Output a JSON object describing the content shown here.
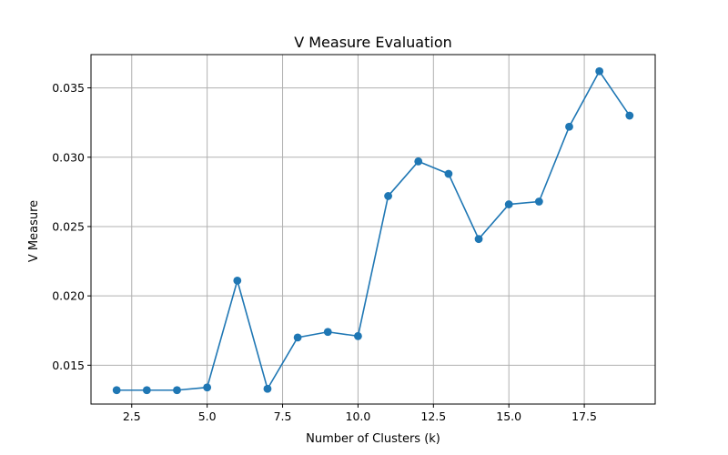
{
  "chart_data": {
    "type": "line",
    "title": "V Measure Evaluation",
    "xlabel": "Number of Clusters (k)",
    "ylabel": "V Measure",
    "xlim": [
      1.15,
      19.85
    ],
    "ylim": [
      0.0122,
      0.0374
    ],
    "xticks": [
      2.5,
      5.0,
      7.5,
      10.0,
      12.5,
      15.0,
      17.5
    ],
    "xtick_labels": [
      "2.5",
      "5.0",
      "7.5",
      "10.0",
      "12.5",
      "15.0",
      "17.5"
    ],
    "yticks": [
      0.015,
      0.02,
      0.025,
      0.03,
      0.035
    ],
    "ytick_labels": [
      "0.015",
      "0.020",
      "0.025",
      "0.030",
      "0.035"
    ],
    "grid": true,
    "marker": "circle",
    "color": "#1f77b4",
    "series": [
      {
        "x": [
          2,
          3,
          4,
          5,
          6,
          7,
          8,
          9,
          10,
          11,
          12,
          13,
          14,
          15,
          16,
          17,
          18,
          19
        ],
        "values": [
          0.0132,
          0.0132,
          0.0132,
          0.0134,
          0.0211,
          0.0133,
          0.017,
          0.0174,
          0.0171,
          0.0272,
          0.0297,
          0.0288,
          0.0241,
          0.0266,
          0.0268,
          0.0322,
          0.0362,
          0.033
        ]
      }
    ]
  }
}
